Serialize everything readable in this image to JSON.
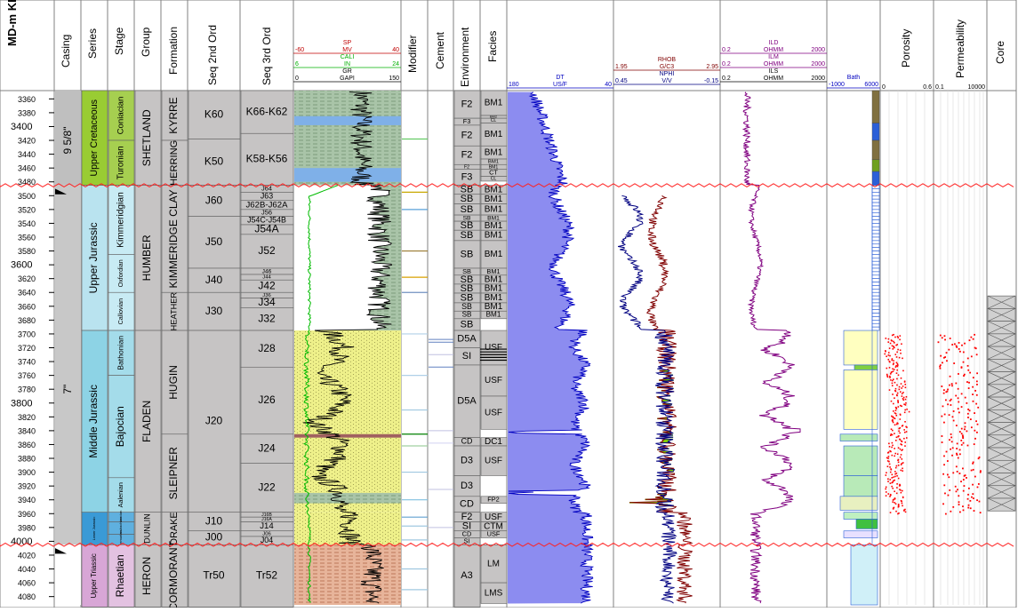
{
  "headers": {
    "depth": "MD-m KB",
    "casing": "Casing",
    "series": "Series",
    "stage": "Stage",
    "group": "Group",
    "formation": "Formation",
    "seq2": "Seq 2nd Ord",
    "seq3": "Seq 3rd Ord",
    "modifier": "Modifier",
    "cement": "Cement",
    "environment": "Environment",
    "facies": "Facies",
    "porosity": "Porosity",
    "permeability": "Permeability",
    "core": "Core"
  },
  "curve_headers": {
    "litho": [
      {
        "name": "SP",
        "left": "-60",
        "unit": "MV",
        "right": "40",
        "color": "#c00000"
      },
      {
        "name": "CALI",
        "left": "6",
        "unit": "IN",
        "right": "24",
        "color": "#00b000"
      },
      {
        "name": "GR",
        "left": "0",
        "unit": "GAPI",
        "right": "150",
        "color": "#000000"
      }
    ],
    "sonic": {
      "name": "DT",
      "left": "180",
      "unit": "US/F",
      "right": "40",
      "color": "#0000c0"
    },
    "density": [
      {
        "name": "RHOB",
        "left": "1.95",
        "unit": "G/C3",
        "right": "2.95",
        "color": "#800000"
      },
      {
        "name": "NPHI",
        "left": "0.45",
        "unit": "V/V",
        "right": "-0.15",
        "color": "#000080"
      }
    ],
    "resistivity": [
      {
        "name": "ILD",
        "left": "0.2",
        "unit": "OHMM",
        "right": "2000",
        "color": "#800080"
      },
      {
        "name": "ILM",
        "left": "0.2",
        "unit": "OHMM",
        "right": "2000",
        "color": "#800080"
      },
      {
        "name": "ILS",
        "left": "0.2",
        "unit": "OHMM",
        "right": "2000",
        "color": "#000000"
      }
    ],
    "bath": {
      "name": "Bath",
      "left": "-1000",
      "right": "6000",
      "color": "#0000c0"
    },
    "porosity_scale": {
      "left": "0",
      "right": "0.6"
    },
    "permeability_scale": {
      "left": "0.1",
      "right": "10000"
    }
  },
  "depth_ticks": [
    "3360",
    "3380",
    "3400",
    "3420",
    "3440",
    "3460",
    "3480",
    "3500",
    "3520",
    "3540",
    "3560",
    "3580",
    "3600",
    "3620",
    "3640",
    "3660",
    "3680",
    "3700",
    "3720",
    "3740",
    "3760",
    "3780",
    "3800",
    "3820",
    "3840",
    "3860",
    "3880",
    "3900",
    "3920",
    "3940",
    "3960",
    "3980",
    "4000",
    "4020",
    "4040",
    "4060",
    "4080"
  ],
  "casing": [
    {
      "label": "9 5/8\""
    },
    {
      "label": "7\""
    }
  ],
  "series": [
    {
      "label": "Upper Cretaceous",
      "top": 3348,
      "bottom": 3485,
      "color": "#99cc33"
    },
    {
      "label": "Upper Jurassic",
      "top": 3485,
      "bottom": 3695,
      "color": "#b9e3ef"
    },
    {
      "label": "Middle Jurassic",
      "top": 3695,
      "bottom": 3958,
      "color": "#8dd3e5"
    },
    {
      "label": "Lower Jurassic",
      "top": 3958,
      "bottom": 4005,
      "color": "#3a9ad6"
    },
    {
      "label": "Upper Triassic",
      "top": 4005,
      "bottom": 4095,
      "color": "#d8a6d6"
    }
  ],
  "stages": [
    {
      "label": "Coniacian",
      "top": 3348,
      "bottom": 3420,
      "color": "#a6cf50"
    },
    {
      "label": "Turonian",
      "top": 3420,
      "bottom": 3485,
      "color": "#a6cf50"
    },
    {
      "label": "Kimmeridgian",
      "top": 3485,
      "bottom": 3585,
      "color": "#c8ebf4"
    },
    {
      "label": "Oxfordian",
      "top": 3585,
      "bottom": 3640,
      "color": "#c8ebf4"
    },
    {
      "label": "Callovian",
      "top": 3640,
      "bottom": 3695,
      "color": "#c8ebf4"
    },
    {
      "label": "Bathonian",
      "top": 3695,
      "bottom": 3760,
      "color": "#a4dcea"
    },
    {
      "label": "Bajocian",
      "top": 3760,
      "bottom": 3908,
      "color": "#a4dcea"
    },
    {
      "label": "Aalenian",
      "top": 3908,
      "bottom": 3958,
      "color": "#a4dcea"
    },
    {
      "label": "Toarcian",
      "top": 3958,
      "bottom": 3972,
      "color": "#5fb0df"
    },
    {
      "label": "Pliensbachian",
      "top": 3972,
      "bottom": 3990,
      "color": "#5fb0df"
    },
    {
      "label": "Sinemurian",
      "top": 3990,
      "bottom": 4005,
      "color": "#5fb0df"
    },
    {
      "label": "Rhaetian",
      "top": 4005,
      "bottom": 4095,
      "color": "#e3c2e1"
    }
  ],
  "groups": [
    {
      "label": "SHETLAND",
      "top": 3348,
      "bottom": 3485
    },
    {
      "label": "HUMBER",
      "top": 3485,
      "bottom": 3695
    },
    {
      "label": "FLADEN",
      "top": 3695,
      "bottom": 3958
    },
    {
      "label": "DUNLIN",
      "top": 3958,
      "bottom": 4005
    },
    {
      "label": "HERON",
      "top": 4005,
      "bottom": 4095
    }
  ],
  "formations": [
    {
      "label": "KYRRE",
      "top": 3348,
      "bottom": 3420
    },
    {
      "label": "HERRING",
      "top": 3420,
      "bottom": 3485
    },
    {
      "label": "KIMMERIDGE CLAY",
      "top": 3485,
      "bottom": 3640
    },
    {
      "label": "HEATHER",
      "top": 3640,
      "bottom": 3695
    },
    {
      "label": "HUGIN",
      "top": 3695,
      "bottom": 3845
    },
    {
      "label": "SLEIPNER",
      "top": 3845,
      "bottom": 3958
    },
    {
      "label": "DRAKE",
      "top": 3958,
      "bottom": 4005
    },
    {
      "label": "CORMORANT",
      "top": 4005,
      "bottom": 4095
    }
  ],
  "seq2": [
    {
      "label": "K60",
      "top": 3348,
      "bottom": 3418
    },
    {
      "label": "K50",
      "top": 3418,
      "bottom": 3485
    },
    {
      "label": "J60",
      "top": 3485,
      "bottom": 3530
    },
    {
      "label": "J50",
      "top": 3530,
      "bottom": 3605
    },
    {
      "label": "J40",
      "top": 3605,
      "bottom": 3640
    },
    {
      "label": "J30",
      "top": 3640,
      "bottom": 3695
    },
    {
      "label": "J20",
      "top": 3695,
      "bottom": 3958
    },
    {
      "label": "J10",
      "top": 3958,
      "bottom": 3985
    },
    {
      "label": "J00",
      "top": 3985,
      "bottom": 4005
    },
    {
      "label": "Tr50",
      "top": 4005,
      "bottom": 4095
    }
  ],
  "seq3": [
    {
      "label": "K66-K62",
      "top": 3348,
      "bottom": 3410
    },
    {
      "label": "K58-K56",
      "top": 3410,
      "bottom": 3485
    },
    {
      "label": "J64",
      "top": 3485,
      "bottom": 3495
    },
    {
      "label": "J63",
      "top": 3495,
      "bottom": 3507
    },
    {
      "label": "J62B-J62A",
      "top": 3507,
      "bottom": 3520
    },
    {
      "label": "J56",
      "top": 3520,
      "bottom": 3530
    },
    {
      "label": "J54C-J54B",
      "top": 3530,
      "bottom": 3542
    },
    {
      "label": "J54A",
      "top": 3542,
      "bottom": 3556
    },
    {
      "label": "J52",
      "top": 3556,
      "bottom": 3605
    },
    {
      "label": "J46",
      "top": 3605,
      "bottom": 3614
    },
    {
      "label": "J44",
      "top": 3614,
      "bottom": 3622
    },
    {
      "label": "J42",
      "top": 3622,
      "bottom": 3640
    },
    {
      "label": "J36",
      "top": 3640,
      "bottom": 3648
    },
    {
      "label": "J34",
      "top": 3648,
      "bottom": 3662
    },
    {
      "label": "J32",
      "top": 3662,
      "bottom": 3695
    },
    {
      "label": "J28",
      "top": 3695,
      "bottom": 3748
    },
    {
      "label": "J26",
      "top": 3748,
      "bottom": 3845
    },
    {
      "label": "J24",
      "top": 3845,
      "bottom": 3887
    },
    {
      "label": "J22",
      "top": 3887,
      "bottom": 3958
    },
    {
      "label": "J16B",
      "top": 3958,
      "bottom": 3965
    },
    {
      "label": "J16A",
      "top": 3965,
      "bottom": 3972
    },
    {
      "label": "J14",
      "top": 3972,
      "bottom": 3985
    },
    {
      "label": "J06",
      "top": 3985,
      "bottom": 3993
    },
    {
      "label": "J04",
      "top": 3993,
      "bottom": 4005
    },
    {
      "label": "Tr52",
      "top": 4005,
      "bottom": 4095
    }
  ],
  "environment": [
    {
      "label": "F2",
      "top": 3348,
      "bottom": 3388
    },
    {
      "label": "F3",
      "top": 3388,
      "bottom": 3398
    },
    {
      "label": "F2",
      "top": 3398,
      "bottom": 3428
    },
    {
      "label": "F2",
      "top": 3428,
      "bottom": 3455
    },
    {
      "label": "F2",
      "top": 3455,
      "bottom": 3462
    },
    {
      "label": "F3",
      "top": 3462,
      "bottom": 3485
    },
    {
      "label": "SB",
      "top": 3485,
      "bottom": 3498
    },
    {
      "label": "SB",
      "top": 3498,
      "bottom": 3512
    },
    {
      "label": "SB",
      "top": 3512,
      "bottom": 3528
    },
    {
      "label": "SB",
      "top": 3528,
      "bottom": 3537
    },
    {
      "label": "SB",
      "top": 3537,
      "bottom": 3550
    },
    {
      "label": "SB",
      "top": 3550,
      "bottom": 3565
    },
    {
      "label": "SB",
      "top": 3565,
      "bottom": 3605
    },
    {
      "label": "SB",
      "top": 3605,
      "bottom": 3615
    },
    {
      "label": "SB",
      "top": 3615,
      "bottom": 3628
    },
    {
      "label": "SB",
      "top": 3628,
      "bottom": 3641
    },
    {
      "label": "SB",
      "top": 3641,
      "bottom": 3655
    },
    {
      "label": "SB",
      "top": 3655,
      "bottom": 3667
    },
    {
      "label": "SB",
      "top": 3667,
      "bottom": 3678
    },
    {
      "label": "SB",
      "top": 3678,
      "bottom": 3695
    },
    {
      "label": "D5A",
      "top": 3695,
      "bottom": 3720
    },
    {
      "label": "SI",
      "top": 3720,
      "bottom": 3745
    },
    {
      "label": "D5A",
      "top": 3745,
      "bottom": 3850
    },
    {
      "label": "CD",
      "top": 3850,
      "bottom": 3862
    },
    {
      "label": "D3",
      "top": 3862,
      "bottom": 3905
    },
    {
      "label": "D3",
      "top": 3905,
      "bottom": 3935
    },
    {
      "label": "CD",
      "top": 3935,
      "bottom": 3958
    },
    {
      "label": "F2",
      "top": 3958,
      "bottom": 3972
    },
    {
      "label": "SI",
      "top": 3972,
      "bottom": 3985
    },
    {
      "label": "CD",
      "top": 3985,
      "bottom": 3995
    },
    {
      "label": "SI",
      "top": 3995,
      "bottom": 4005
    },
    {
      "label": "A3",
      "top": 4005,
      "bottom": 4095
    }
  ],
  "facies": [
    {
      "label": "BM1",
      "top": 3348,
      "bottom": 3384
    },
    {
      "label": "BM2",
      "top": 3384,
      "bottom": 3388
    },
    {
      "label": "CL",
      "top": 3388,
      "bottom": 3395
    },
    {
      "label": "BM1",
      "top": 3395,
      "bottom": 3428
    },
    {
      "label": "BM1",
      "top": 3428,
      "bottom": 3447
    },
    {
      "label": "BM1",
      "top": 3447,
      "bottom": 3455
    },
    {
      "label": "BM1",
      "top": 3455,
      "bottom": 3462
    },
    {
      "label": "CT",
      "top": 3462,
      "bottom": 3472
    },
    {
      "label": "CL",
      "top": 3472,
      "bottom": 3479
    },
    {
      "label": "BM1",
      "top": 3485,
      "bottom": 3498
    },
    {
      "label": "BM1",
      "top": 3498,
      "bottom": 3512
    },
    {
      "label": "BM1",
      "top": 3512,
      "bottom": 3528
    },
    {
      "label": "BM1",
      "top": 3528,
      "bottom": 3537
    },
    {
      "label": "BM1",
      "top": 3537,
      "bottom": 3550
    },
    {
      "label": "BM1",
      "top": 3550,
      "bottom": 3565
    },
    {
      "label": "BM1",
      "top": 3565,
      "bottom": 3605
    },
    {
      "label": "BM1",
      "top": 3605,
      "bottom": 3615
    },
    {
      "label": "BM1",
      "top": 3615,
      "bottom": 3628
    },
    {
      "label": "BM1",
      "top": 3628,
      "bottom": 3641
    },
    {
      "label": "BM1",
      "top": 3641,
      "bottom": 3655
    },
    {
      "label": "BM1",
      "top": 3655,
      "bottom": 3667
    },
    {
      "label": "BM1",
      "top": 3667,
      "bottom": 3678
    },
    {
      "label": "USF",
      "top": 3695,
      "bottom": 3745
    },
    {
      "label": "USF",
      "top": 3745,
      "bottom": 3790
    },
    {
      "label": "USF",
      "top": 3790,
      "bottom": 3838
    },
    {
      "label": "DC1",
      "top": 3850,
      "bottom": 3862
    },
    {
      "label": "USF",
      "top": 3862,
      "bottom": 3905
    },
    {
      "label": "FP2",
      "top": 3935,
      "bottom": 3945
    },
    {
      "label": "USF",
      "top": 3958,
      "bottom": 3972
    },
    {
      "label": "CTM",
      "top": 3972,
      "bottom": 3985
    },
    {
      "label": "USF",
      "top": 3985,
      "bottom": 3995
    },
    {
      "label": "LM",
      "top": 4005,
      "bottom": 4060
    },
    {
      "label": "LMS",
      "top": 4060,
      "bottom": 4090
    }
  ]
}
